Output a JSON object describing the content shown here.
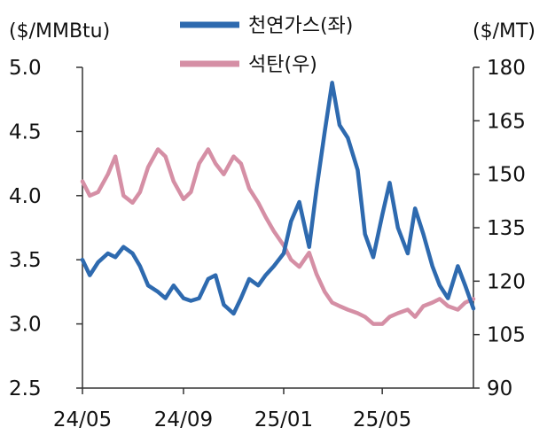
{
  "chart_data": {
    "type": "line",
    "title": "",
    "xlabel": "",
    "left_axis": {
      "unit_label": "($/MMBtu)",
      "ylim": [
        2.5,
        5.0
      ],
      "ticks": [
        "2.5",
        "3.0",
        "3.5",
        "4.0",
        "4.5",
        "5.0"
      ]
    },
    "right_axis": {
      "unit_label": "($/MT)",
      "ylim": [
        90,
        180
      ],
      "ticks": [
        "90",
        "105",
        "120",
        "135",
        "150",
        "165",
        "180"
      ]
    },
    "x_ticks": [
      "24/05",
      "24/09",
      "25/01",
      "25/05"
    ],
    "x_tick_dates": [
      "2024-05-01",
      "2024-09-01",
      "2025-01-01",
      "2025-05-01"
    ],
    "x_range": [
      "2024-05-01",
      "2025-08-20"
    ],
    "grid": false,
    "legend_position": "top-center",
    "series": [
      {
        "name": "천연가스(좌)",
        "axis": "left",
        "color": "#2E6AAF",
        "dates": [
          "2024-05-01",
          "2024-05-10",
          "2024-05-20",
          "2024-06-01",
          "2024-06-10",
          "2024-06-20",
          "2024-07-01",
          "2024-07-10",
          "2024-07-20",
          "2024-08-01",
          "2024-08-10",
          "2024-08-20",
          "2024-09-01",
          "2024-09-10",
          "2024-09-20",
          "2024-10-01",
          "2024-10-10",
          "2024-10-20",
          "2024-11-01",
          "2024-11-10",
          "2024-11-20",
          "2024-12-01",
          "2024-12-10",
          "2024-12-20",
          "2025-01-01",
          "2025-01-10",
          "2025-01-20",
          "2025-02-01",
          "2025-02-10",
          "2025-02-20",
          "2025-03-01",
          "2025-03-10",
          "2025-03-20",
          "2025-04-01",
          "2025-04-10",
          "2025-04-20",
          "2025-05-01",
          "2025-05-10",
          "2025-05-20",
          "2025-06-01",
          "2025-06-10",
          "2025-06-20",
          "2025-07-01",
          "2025-07-10",
          "2025-07-20",
          "2025-08-01",
          "2025-08-10",
          "2025-08-20"
        ],
        "values": [
          3.5,
          3.38,
          3.48,
          3.55,
          3.52,
          3.6,
          3.55,
          3.45,
          3.3,
          3.25,
          3.2,
          3.3,
          3.2,
          3.18,
          3.2,
          3.35,
          3.38,
          3.15,
          3.08,
          3.2,
          3.35,
          3.3,
          3.38,
          3.45,
          3.55,
          3.8,
          3.95,
          3.6,
          4.05,
          4.5,
          4.88,
          4.55,
          4.45,
          4.2,
          3.7,
          3.52,
          3.85,
          4.1,
          3.75,
          3.55,
          3.9,
          3.7,
          3.45,
          3.3,
          3.2,
          3.45,
          3.3,
          3.12
        ]
      },
      {
        "name": "석탄(우)",
        "axis": "right",
        "color": "#D58FA5",
        "dates": [
          "2024-05-01",
          "2024-05-10",
          "2024-05-20",
          "2024-06-01",
          "2024-06-10",
          "2024-06-20",
          "2024-07-01",
          "2024-07-10",
          "2024-07-20",
          "2024-08-01",
          "2024-08-10",
          "2024-08-20",
          "2024-09-01",
          "2024-09-10",
          "2024-09-20",
          "2024-10-01",
          "2024-10-10",
          "2024-10-20",
          "2024-11-01",
          "2024-11-10",
          "2024-11-20",
          "2024-12-01",
          "2024-12-10",
          "2024-12-20",
          "2025-01-01",
          "2025-01-10",
          "2025-01-20",
          "2025-02-01",
          "2025-02-10",
          "2025-02-20",
          "2025-03-01",
          "2025-03-10",
          "2025-03-20",
          "2025-04-01",
          "2025-04-10",
          "2025-04-20",
          "2025-05-01",
          "2025-05-10",
          "2025-05-20",
          "2025-06-01",
          "2025-06-10",
          "2025-06-20",
          "2025-07-01",
          "2025-07-10",
          "2025-07-20",
          "2025-08-01",
          "2025-08-10",
          "2025-08-20"
        ],
        "values": [
          148,
          144,
          145,
          150,
          155,
          144,
          142,
          145,
          152,
          157,
          155,
          148,
          143,
          145,
          153,
          157,
          153,
          150,
          155,
          153,
          146,
          142,
          138,
          134,
          130,
          126,
          124,
          128,
          122,
          117,
          114,
          113,
          112,
          111,
          110,
          108,
          108,
          110,
          111,
          112,
          110,
          113,
          114,
          115,
          113,
          112,
          114,
          115
        ]
      }
    ]
  }
}
